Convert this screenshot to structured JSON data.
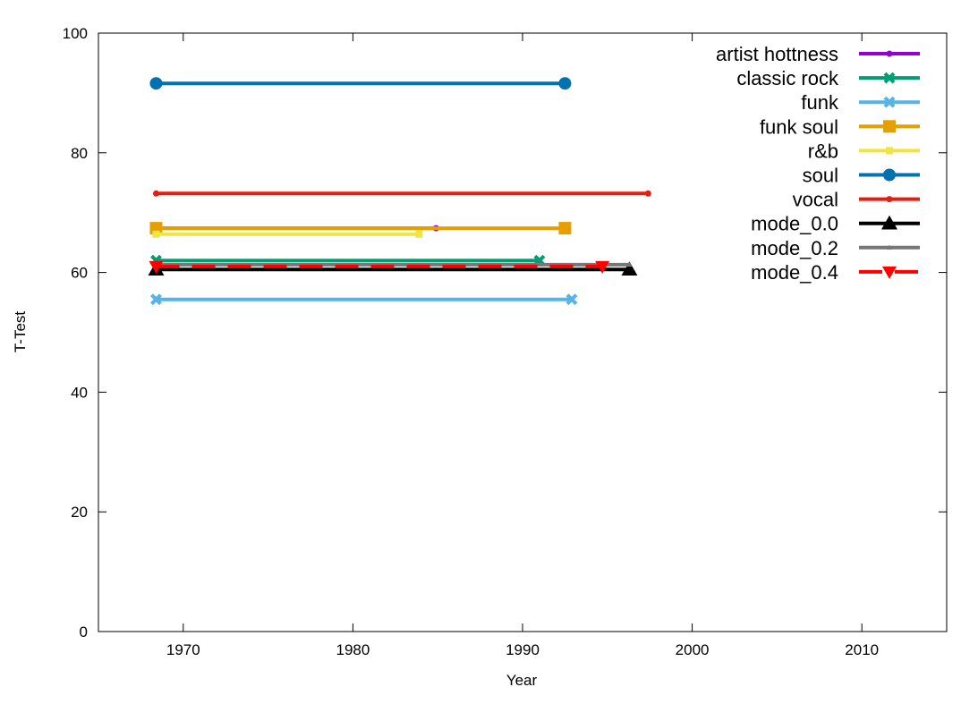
{
  "chart_data": {
    "type": "line",
    "x_label": "Year",
    "y_label": "T-Test",
    "xlim": [
      1965,
      2015
    ],
    "xticks": [
      1970,
      1980,
      1990,
      2000,
      2010
    ],
    "ylim": [
      0,
      100
    ],
    "yticks": [
      0,
      20,
      40,
      60,
      80,
      100
    ],
    "legend": "top-right",
    "series": [
      {
        "name": "artist hottness",
        "color": "#9400d3",
        "marker": "circle",
        "marker_size": 3.5,
        "x": [
          1968.4,
          1984.9
        ],
        "values": [
          67.4,
          67.4
        ]
      },
      {
        "name": "classic rock",
        "color": "#009e73",
        "marker": "cross",
        "marker_size": 5,
        "x": [
          1968.4,
          1991.0
        ],
        "values": [
          62.0,
          62.0
        ]
      },
      {
        "name": "funk",
        "color": "#56b4e9",
        "marker": "cross",
        "marker_size": 5,
        "x": [
          1968.4,
          1992.9
        ],
        "values": [
          55.5,
          55.5
        ]
      },
      {
        "name": "funk soul",
        "color": "#e69f00",
        "marker": "square",
        "marker_size": 7,
        "x": [
          1968.4,
          1992.5
        ],
        "values": [
          67.4,
          67.4
        ]
      },
      {
        "name": "r&b",
        "color": "#f0e442",
        "marker": "square",
        "marker_size": 4,
        "x": [
          1968.4,
          1983.9
        ],
        "values": [
          66.4,
          66.4
        ]
      },
      {
        "name": "soul",
        "color": "#0072b2",
        "marker": "circle",
        "marker_size": 7,
        "x": [
          1968.4,
          1992.5
        ],
        "values": [
          91.6,
          91.6
        ]
      },
      {
        "name": "vocal",
        "color": "#e51e10",
        "marker": "circle",
        "marker_size": 3.5,
        "x": [
          1968.4,
          1997.4
        ],
        "values": [
          73.2,
          73.2
        ]
      },
      {
        "name": "mode_0.0",
        "color": "#000000",
        "marker": "triangle",
        "marker_size": 9,
        "x": [
          1968.4,
          1996.3
        ],
        "values": [
          60.5,
          60.5
        ]
      },
      {
        "name": "mode_0.2",
        "color": "#777777",
        "marker": "triangle",
        "marker_size": 3,
        "x": [
          1968.4,
          1996.3
        ],
        "values": [
          61.3,
          61.3
        ]
      },
      {
        "name": "mode_0.4",
        "color": "#ff0000",
        "marker": "triangle-down",
        "marker_size": 8,
        "dash": true,
        "x": [
          1968.4,
          1994.7
        ],
        "values": [
          61.0,
          61.0
        ]
      }
    ]
  }
}
